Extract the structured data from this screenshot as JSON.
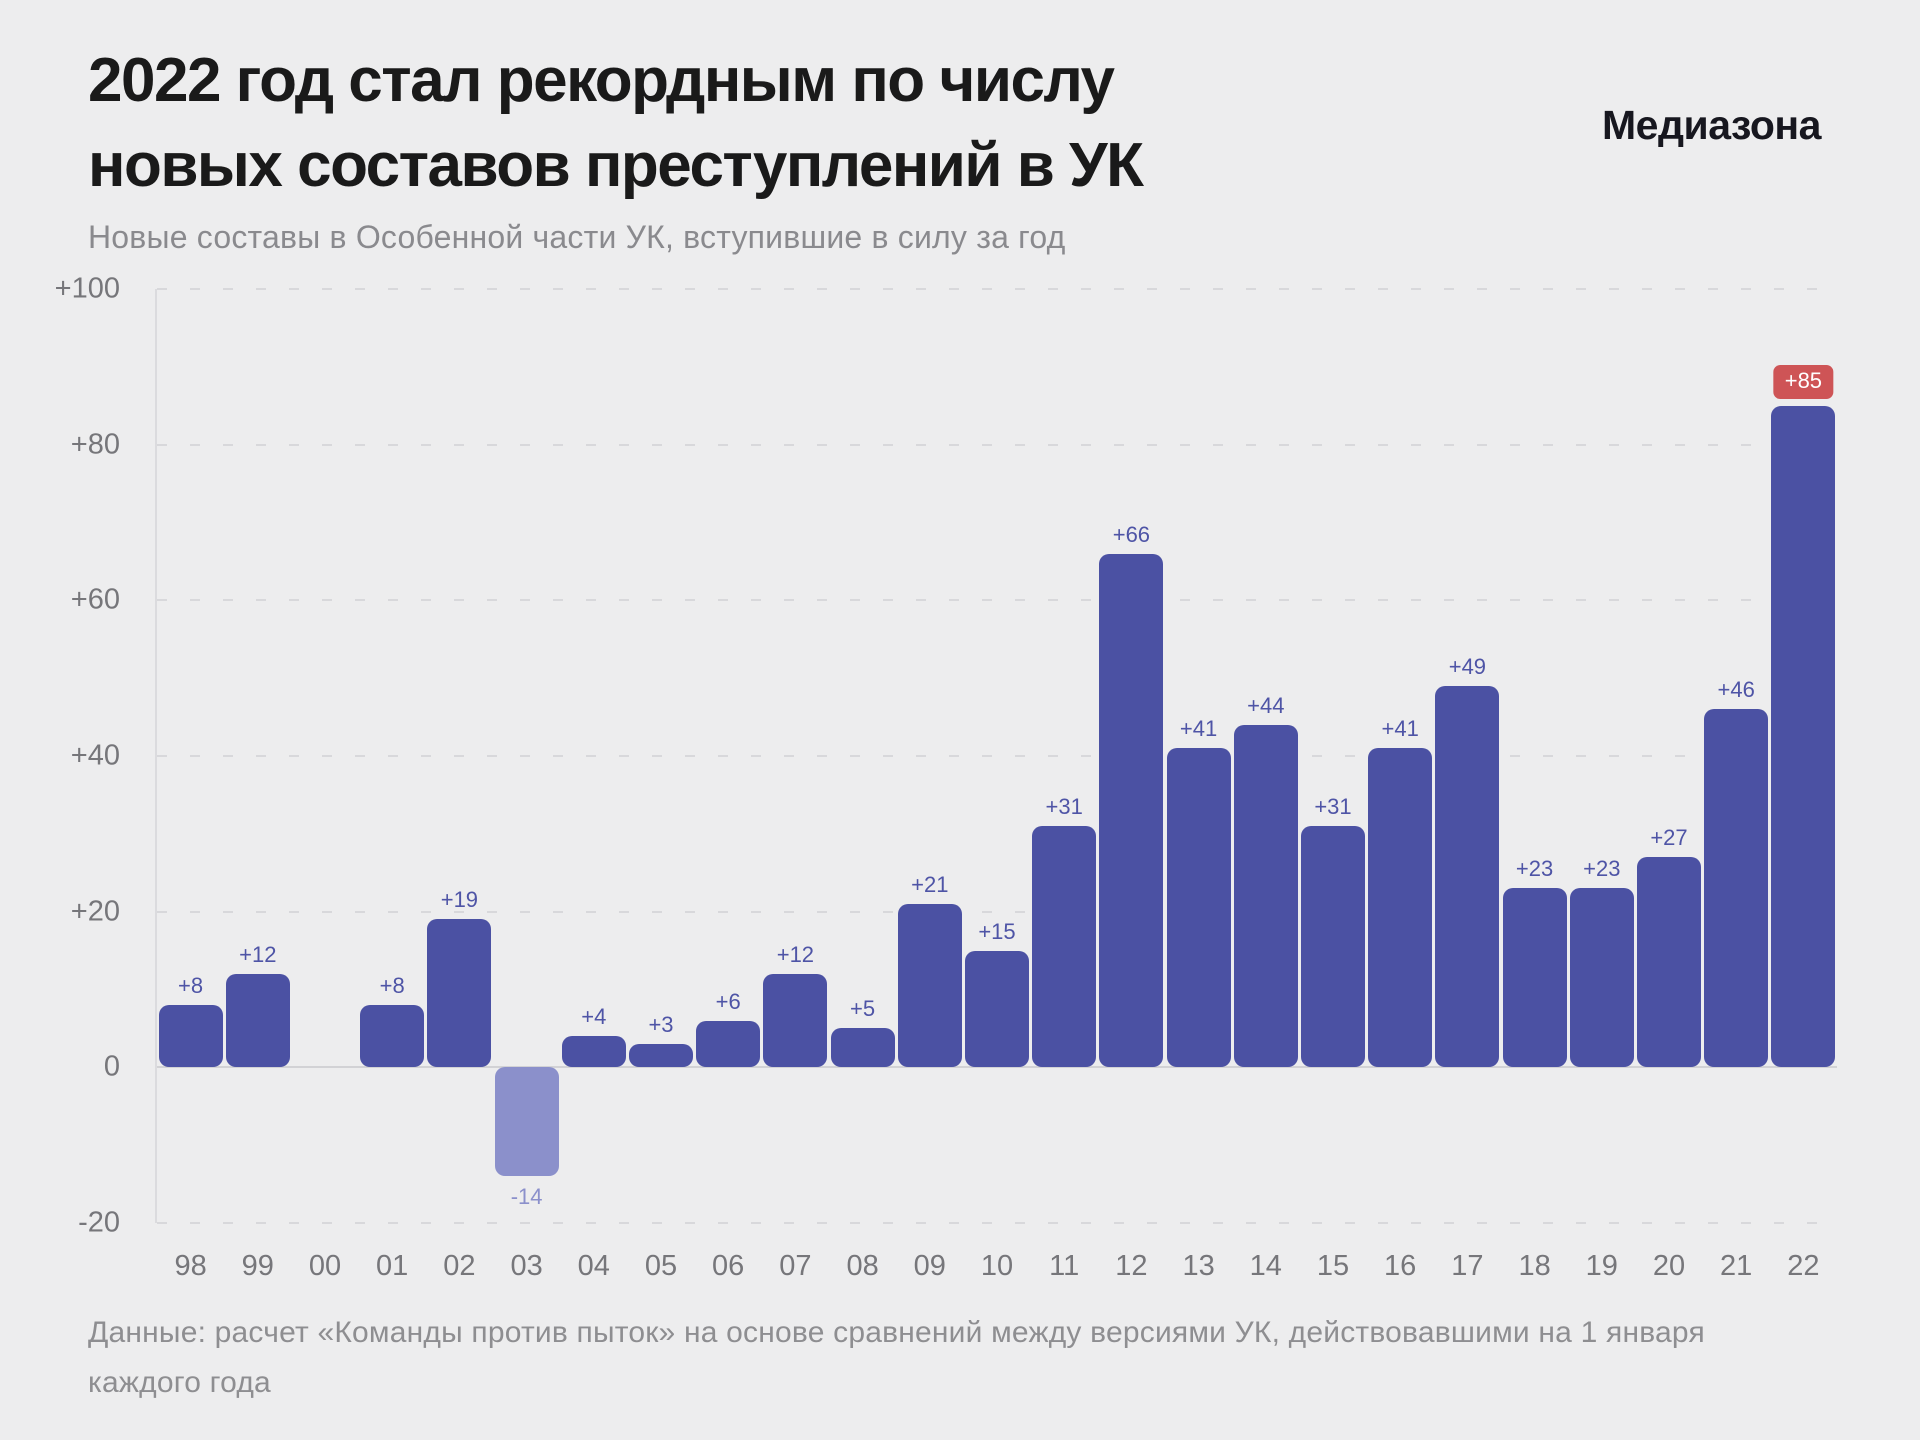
{
  "page": {
    "background": "#EDEDEE"
  },
  "header": {
    "title_line1": "2022 год стал рекордным по числу",
    "title_line2": "новых составов преступлений в УК",
    "subtitle": "Новые составы в Особенной части УК, вступившие в силу за год",
    "brand": "Медиазона"
  },
  "footer": {
    "source": "Данные: расчет «Команды против пыток» на основе сравнений между версиями УК, действовавшими на 1 января каждого года"
  },
  "chart_data": {
    "type": "bar",
    "title": "2022 год стал рекордным по числу новых составов преступлений в УК",
    "subtitle": "Новые составы в Особенной части УК, вступившие в силу за год",
    "xlabel": "",
    "ylabel": "",
    "categories": [
      "98",
      "99",
      "00",
      "01",
      "02",
      "03",
      "04",
      "05",
      "06",
      "07",
      "08",
      "09",
      "10",
      "11",
      "12",
      "13",
      "14",
      "15",
      "16",
      "17",
      "18",
      "19",
      "20",
      "21",
      "22"
    ],
    "values": [
      8,
      12,
      0,
      8,
      19,
      -14,
      4,
      3,
      6,
      12,
      5,
      21,
      15,
      31,
      66,
      41,
      44,
      31,
      41,
      49,
      23,
      23,
      27,
      46,
      85
    ],
    "bar_labels": [
      "+8",
      "+12",
      "",
      "+8",
      "+19",
      "-14",
      "+4",
      "+3",
      "+6",
      "+12",
      "+5",
      "+21",
      "+15",
      "+31",
      "+66",
      "+41",
      "+44",
      "+31",
      "+41",
      "+49",
      "+23",
      "+23",
      "+27",
      "+46",
      "+85"
    ],
    "highlight_index": 24,
    "highlight_category": "22",
    "highlight_label": "+85",
    "ylim": [
      -20,
      100
    ],
    "yticks": [
      {
        "value": 100,
        "label": "+100"
      },
      {
        "value": 80,
        "label": "+80"
      },
      {
        "value": 60,
        "label": "+60"
      },
      {
        "value": 40,
        "label": "+40"
      },
      {
        "value": 20,
        "label": "+20"
      },
      {
        "value": 0,
        "label": "0"
      },
      {
        "value": -20,
        "label": "-20"
      }
    ],
    "grid": "horizontal-dashed",
    "legend": "none",
    "colors": {
      "background": "#EDEDEE",
      "bar_positive": "#4B51A3",
      "bar_negative": "#8B90CB",
      "value_label": "#4E54A6",
      "negative_value_label": "#8B90CB",
      "highlight_badge_bg": "#CE5456",
      "highlight_badge_text": "#FFFFFF",
      "gridline": "#D8D8DB",
      "zero_line": "#D2D2D5",
      "axis_label": "#76767A"
    }
  }
}
